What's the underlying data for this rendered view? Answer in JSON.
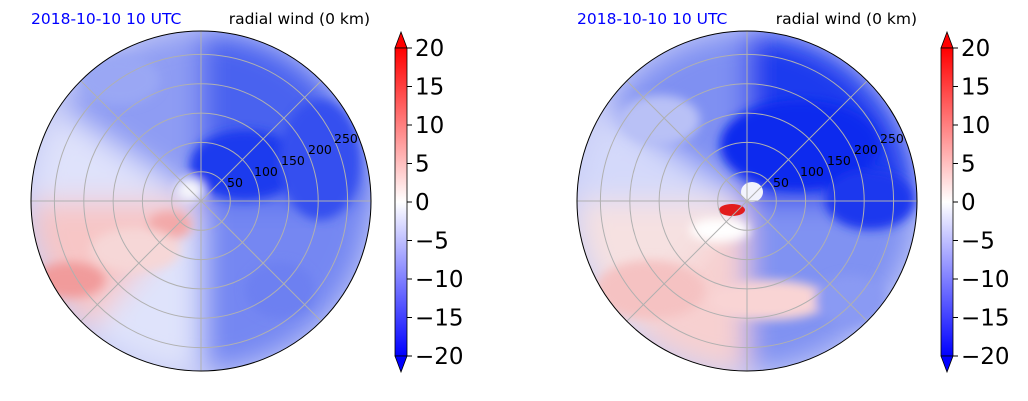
{
  "chart_data": [
    {
      "type": "heatmap",
      "projection": "polar",
      "title_left": "2018-10-10 10 UTC",
      "title_right": "radial wind (0 km)",
      "title_left_color": "#0000ff",
      "radial_ticks": [
        50,
        100,
        150,
        200,
        250
      ],
      "r_max_km": 290,
      "angular_gridlines_deg": [
        0,
        45,
        90,
        135,
        180,
        225,
        270,
        315
      ],
      "grid": true,
      "colorbar": {
        "ticks": [
          20,
          15,
          10,
          5,
          0,
          -5,
          -10,
          -15,
          -20
        ],
        "tick_labels": [
          "20",
          "15",
          "10",
          "5",
          "0",
          "−5",
          "−10",
          "−15",
          "−20"
        ],
        "min": -20,
        "max": 20,
        "extend": "both",
        "colormap": "bwr",
        "negative_color": "#0000ff",
        "positive_color": "#ff0000"
      },
      "field_regions": [
        {
          "sector": "east",
          "value": -12
        },
        {
          "sector": "north-east",
          "value": -13
        },
        {
          "sector": "north-west",
          "value": -6
        },
        {
          "sector": "west",
          "value": 2
        },
        {
          "sector": "south-west",
          "value": 7
        },
        {
          "sector": "south",
          "value": -3
        },
        {
          "sector": "south-east",
          "value": -9
        },
        {
          "sector": "inner-core",
          "value": -16
        }
      ]
    },
    {
      "type": "heatmap",
      "projection": "polar",
      "title_left": "2018-10-10 10 UTC",
      "title_right": "radial wind (0 km)",
      "title_left_color": "#0000ff",
      "radial_ticks": [
        50,
        100,
        150,
        200,
        250
      ],
      "r_max_km": 290,
      "angular_gridlines_deg": [
        0,
        45,
        90,
        135,
        180,
        225,
        270,
        315
      ],
      "grid": true,
      "colorbar": {
        "ticks": [
          20,
          15,
          10,
          5,
          0,
          -5,
          -10,
          -15,
          -20
        ],
        "tick_labels": [
          "20",
          "15",
          "10",
          "5",
          "0",
          "−5",
          "−10",
          "−15",
          "−20"
        ],
        "min": -20,
        "max": 20,
        "extend": "both",
        "colormap": "bwr",
        "negative_color": "#0000ff",
        "positive_color": "#ff0000"
      },
      "field_regions": [
        {
          "sector": "east",
          "value": -16
        },
        {
          "sector": "north-east",
          "value": -17
        },
        {
          "sector": "north-west",
          "value": -7
        },
        {
          "sector": "west",
          "value": -2
        },
        {
          "sector": "south-west",
          "value": 5
        },
        {
          "sector": "south",
          "value": 3
        },
        {
          "sector": "south-east",
          "value": -8
        },
        {
          "sector": "inner-core",
          "value": 18
        }
      ]
    }
  ]
}
